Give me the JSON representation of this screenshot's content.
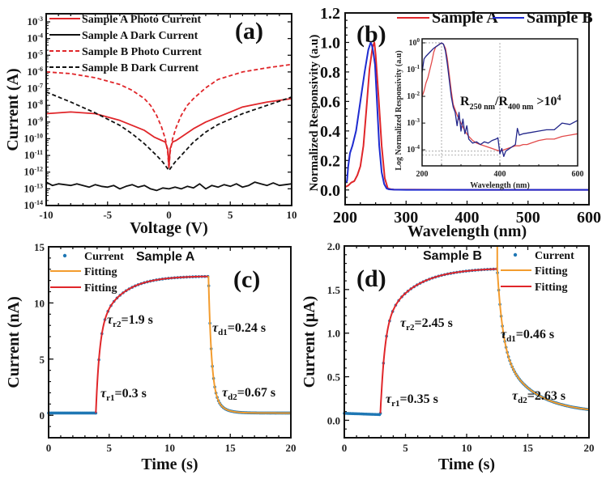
{
  "chart_data": [
    {
      "id": "a",
      "type": "line",
      "panel_label": "(a)",
      "xlabel": "Voltage (V)",
      "ylabel": "Current (A)",
      "xlim": [
        -10,
        10
      ],
      "ylim_log10": [
        -14,
        -3
      ],
      "yscale": "log",
      "xticks": [
        "-10",
        "-5",
        "0",
        "5",
        "10"
      ],
      "yticks": [
        "10-14",
        "10-13",
        "10-12",
        "10-11",
        "10-10",
        "10-9",
        "10-8",
        "10-7",
        "10-6",
        "10-5",
        "10-4",
        "10-3"
      ],
      "legend_position": "top-left",
      "series": [
        {
          "name": "Sample A Photo Current",
          "color": "#e0262a",
          "dash": "solid",
          "x": [
            -10,
            -8,
            -6,
            -5,
            -4,
            -3,
            -2,
            -1.2,
            -0.6,
            -0.3,
            -0.1,
            0,
            0.1,
            0.3,
            0.6,
            1,
            2,
            3,
            4,
            5,
            6,
            8,
            10
          ],
          "log10y": [
            -8.5,
            -8.4,
            -8.5,
            -8.7,
            -8.9,
            -9.2,
            -9.5,
            -9.9,
            -10.1,
            -10.2,
            -10.6,
            -11.7,
            -10.6,
            -10.2,
            -10.1,
            -9.9,
            -9.4,
            -9.0,
            -8.7,
            -8.4,
            -8.1,
            -7.8,
            -7.6
          ]
        },
        {
          "name": "Sample A Dark Current",
          "color": "#111111",
          "dash": "solid",
          "x": [
            -10,
            -9.5,
            -9,
            -8.5,
            -8,
            -7.5,
            -7,
            -6.5,
            -6,
            -5.5,
            -5,
            -4.5,
            -4,
            -3.5,
            -3,
            -2.5,
            -2,
            -1.5,
            -1,
            -0.5,
            0,
            0.5,
            1,
            1.5,
            2,
            2.5,
            3,
            3.5,
            4,
            4.5,
            5,
            5.5,
            6,
            6.5,
            7,
            7.5,
            8,
            8.5,
            9,
            9.5,
            10
          ],
          "log10y": [
            -12.6,
            -12.8,
            -12.7,
            -12.75,
            -12.8,
            -12.7,
            -12.8,
            -12.9,
            -12.75,
            -12.85,
            -12.9,
            -12.8,
            -13.0,
            -12.85,
            -12.75,
            -12.9,
            -12.8,
            -13.0,
            -13.1,
            -12.95,
            -13.0,
            -12.9,
            -13.0,
            -12.85,
            -12.95,
            -12.7,
            -13.0,
            -12.8,
            -12.9,
            -12.75,
            -12.85,
            -12.7,
            -12.9,
            -12.8,
            -12.6,
            -12.7,
            -12.8,
            -12.65,
            -12.8,
            -12.75,
            -12.7
          ]
        },
        {
          "name": "Sample B Photo Current",
          "color": "#e0262a",
          "dash": "dashed",
          "x": [
            -10,
            -8,
            -6,
            -4,
            -3,
            -2,
            -1.5,
            -1,
            -0.6,
            -0.3,
            -0.1,
            0,
            0.1,
            0.3,
            0.6,
            1,
            1.5,
            2,
            3,
            4,
            6,
            8,
            10
          ],
          "log10y": [
            -6.0,
            -6.1,
            -6.35,
            -6.75,
            -7.1,
            -7.6,
            -8.0,
            -8.6,
            -9.3,
            -10.0,
            -10.8,
            -11.8,
            -10.8,
            -10.0,
            -9.3,
            -8.6,
            -8.0,
            -7.6,
            -6.95,
            -6.45,
            -6.0,
            -5.75,
            -5.55
          ]
        },
        {
          "name": "Sample B Dark Current",
          "color": "#111111",
          "dash": "dashed",
          "x": [
            -10,
            -8,
            -6,
            -4,
            -3,
            -2,
            -1,
            -0.5,
            -0.2,
            0,
            0.2,
            0.5,
            1,
            2,
            3,
            4,
            6,
            8,
            10
          ],
          "log10y": [
            -7.2,
            -7.8,
            -8.45,
            -9.2,
            -9.7,
            -10.3,
            -11.0,
            -11.4,
            -11.7,
            -11.9,
            -11.7,
            -11.4,
            -11.0,
            -10.2,
            -9.6,
            -9.15,
            -8.5,
            -8.0,
            -7.5
          ]
        }
      ]
    },
    {
      "id": "b",
      "type": "line",
      "panel_label": "(b)",
      "xlabel": "Wavelength (nm)",
      "ylabel": "Normalized Responsivity (a.u)",
      "xlim": [
        200,
        600
      ],
      "ylim": [
        -0.1,
        1.2
      ],
      "xticks": [
        "200",
        "300",
        "400",
        "500",
        "600"
      ],
      "yticks": [
        "0.0",
        "0.2",
        "0.4",
        "0.6",
        "0.8",
        "1.0",
        "1.2"
      ],
      "legend_position": "top",
      "series": [
        {
          "name": "Sample A",
          "color": "#e0262a",
          "x": [
            200,
            205,
            210,
            215,
            220,
            225,
            230,
            235,
            240,
            245,
            248,
            250,
            252,
            255,
            260,
            265,
            270,
            275,
            280,
            300,
            400,
            500,
            600
          ],
          "y": [
            0.02,
            0.03,
            0.05,
            0.06,
            0.1,
            0.16,
            0.3,
            0.55,
            0.82,
            0.97,
            1.0,
            0.92,
            0.8,
            0.62,
            0.3,
            0.08,
            0.01,
            0.005,
            0.003,
            0.002,
            0.001,
            0.001,
            0.001
          ]
        },
        {
          "name": "Sample B",
          "color": "#1e2bd0",
          "x": [
            200,
            203,
            205,
            208,
            212,
            218,
            225,
            232,
            238,
            242,
            244,
            246,
            249,
            252,
            256,
            260,
            264,
            268,
            272,
            280,
            300,
            400,
            500,
            600
          ],
          "y": [
            0.05,
            0.06,
            0.16,
            0.25,
            0.3,
            0.4,
            0.6,
            0.8,
            0.95,
            1.0,
            0.98,
            0.94,
            0.85,
            0.62,
            0.3,
            0.12,
            0.04,
            0.01,
            0.004,
            0.002,
            0.001,
            0.001,
            0.001,
            0.001
          ]
        }
      ],
      "inset": {
        "xlabel": "Wavelength (nm)",
        "ylabel": "Log Normalized Responsivity (a.u)",
        "xlim": [
          200,
          600
        ],
        "ylim_log10": [
          -4.6,
          0.15
        ],
        "xticks": [
          "200",
          "400",
          "600"
        ],
        "yticks": [
          "10-4",
          "10-3",
          "10-2",
          "10-1",
          "100"
        ],
        "annotation": "R250 nm/R400 nm >104",
        "reference_lines": {
          "x": [
            250,
            400
          ],
          "log10y": [
            0,
            -4.05,
            -4.2
          ]
        },
        "series": [
          {
            "name": "Sample A",
            "color": "#e24a4a",
            "x": [
              200,
              205,
              210,
              215,
              220,
              225,
              230,
              235,
              240,
              245,
              250,
              255,
              260,
              265,
              270,
              275,
              280,
              290,
              300,
              310,
              320,
              330,
              340,
              350,
              360,
              370,
              380,
              390,
              400,
              410,
              420,
              430,
              440,
              450,
              460,
              470,
              480,
              490,
              500,
              520,
              540,
              560,
              580,
              600
            ],
            "log10y": [
              -2.0,
              -1.8,
              -1.5,
              -1.3,
              -1.0,
              -0.7,
              -0.35,
              -0.15,
              -0.1,
              -0.05,
              0,
              -0.05,
              -0.2,
              -0.6,
              -1.2,
              -1.8,
              -2.3,
              -2.7,
              -3.0,
              -3.3,
              -3.5,
              -3.65,
              -3.75,
              -3.8,
              -3.85,
              -3.9,
              -3.95,
              -4.0,
              -4.05,
              -4.0,
              -3.95,
              -3.9,
              -3.85,
              -3.85,
              -3.8,
              -3.8,
              -3.75,
              -3.7,
              -3.65,
              -3.6,
              -3.6,
              -3.5,
              -3.45,
              -3.4
            ]
          },
          {
            "name": "Sample B",
            "color": "#22268a",
            "x": [
              200,
              205,
              210,
              220,
              230,
              240,
              245,
              250,
              255,
              260,
              265,
              270,
              275,
              280,
              285,
              290,
              295,
              300,
              305,
              310,
              315,
              320,
              330,
              340,
              350,
              360,
              370,
              380,
              390,
              395,
              400,
              405,
              410,
              415,
              420,
              430,
              440,
              445,
              450,
              460,
              480,
              500,
              520,
              540,
              560,
              580,
              600
            ],
            "log10y": [
              -1.1,
              -0.6,
              -0.5,
              -0.35,
              -0.2,
              -0.1,
              -0.05,
              0,
              -0.05,
              -0.3,
              -0.8,
              -1.4,
              -2.0,
              -2.4,
              -2.6,
              -3.1,
              -2.6,
              -3.3,
              -2.85,
              -3.4,
              -3.1,
              -3.6,
              -3.75,
              -3.7,
              -3.8,
              -3.7,
              -3.75,
              -3.65,
              -3.6,
              -3.55,
              -4.15,
              -3.95,
              -4.25,
              -4.05,
              -4.0,
              -3.9,
              -3.8,
              -3.2,
              -3.45,
              -3.4,
              -3.35,
              -3.3,
              -3.25,
              -3.25,
              -3.0,
              -3.05,
              -2.9
            ]
          }
        ]
      }
    },
    {
      "id": "c",
      "type": "line",
      "panel_label": "(c)",
      "title": "Sample A",
      "xlabel": "Time (s)",
      "ylabel": "Current (nA)",
      "xlim": [
        0,
        20
      ],
      "ylim": [
        -2,
        15
      ],
      "xticks": [
        "0",
        "5",
        "10",
        "15",
        "20"
      ],
      "yticks": [
        "0",
        "5",
        "10",
        "15"
      ],
      "legend_position": "top-left",
      "legend": [
        "Current",
        "Fitting",
        "Fitting"
      ],
      "annotations": [
        "τr2=1.9 s",
        "τd1=0.24 s",
        "τr1=0.3 s",
        "τd2=0.67 s"
      ],
      "light_on_s": 3.9,
      "light_off_s": 13.2,
      "dark_level": 0.2,
      "saturation": 12.4,
      "tau_r1": 0.3,
      "tau_r2": 1.9,
      "tau_d1": 0.24,
      "tau_d2": 0.67,
      "series": [
        {
          "name": "Current",
          "color": "#1f77b4",
          "marker": "dot"
        },
        {
          "name": "Fitting (decay)",
          "color": "#f39c2e"
        },
        {
          "name": "Fitting (rise)",
          "color": "#e0262a"
        }
      ]
    },
    {
      "id": "d",
      "type": "line",
      "panel_label": "(d)",
      "title": "Sample B",
      "xlabel": "Time (s)",
      "ylabel": "Current (μA)",
      "xlim": [
        0,
        20
      ],
      "ylim": [
        -0.2,
        2.0
      ],
      "xticks": [
        "0",
        "5",
        "10",
        "15",
        "20"
      ],
      "yticks": [
        "0.0",
        "0.5",
        "1.0",
        "1.5",
        "2.0"
      ],
      "legend_position": "top-right",
      "legend": [
        "Current",
        "Fitting",
        "Fitting"
      ],
      "annotations": [
        "τr2=2.45 s",
        "τd1=0.46 s",
        "τr1=0.35 s",
        "τd2=2.63 s"
      ],
      "light_on_s": 2.95,
      "light_off_s": 12.5,
      "dark_level": 0.08,
      "saturation": 1.75,
      "tau_r1": 0.35,
      "tau_r2": 2.45,
      "tau_d1": 0.46,
      "tau_d2": 2.63,
      "series": [
        {
          "name": "Current",
          "color": "#1f77b4",
          "marker": "dot"
        },
        {
          "name": "Fitting (decay)",
          "color": "#f39c2e"
        },
        {
          "name": "Fitting (rise)",
          "color": "#e0262a"
        }
      ]
    }
  ],
  "labels": {
    "a_leg": [
      "Sample A Photo Current",
      "Sample A Dark Current",
      "Sample B Photo Current",
      "Sample B Dark Current"
    ],
    "b_leg": [
      "Sample A",
      "Sample B"
    ],
    "inset_ann_R": "R",
    "inset_ann_sub1": "250 nm",
    "inset_ann_slash": "/R",
    "inset_ann_sub2": "400 nm",
    "inset_ann_gt": " >10",
    "inset_ann_sup": "4"
  }
}
